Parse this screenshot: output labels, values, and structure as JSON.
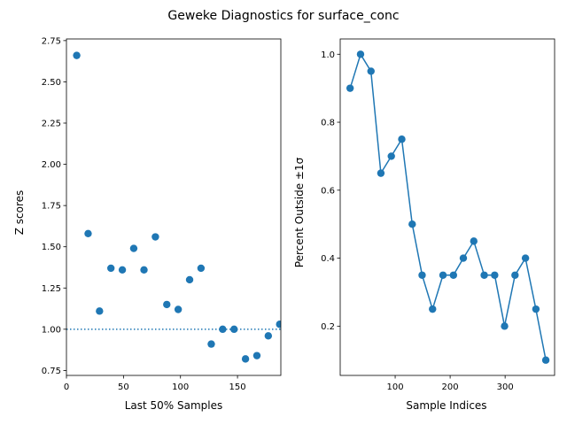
{
  "title": "Geweke Diagnostics for surface_conc",
  "chart_data": [
    {
      "type": "scatter",
      "xlabel": "Last 50% Samples",
      "ylabel": "Z scores",
      "xlim": [
        0,
        188
      ],
      "ylim": [
        0.72,
        2.76
      ],
      "xticks": [
        0,
        50,
        100,
        150
      ],
      "yticks": [
        0.75,
        1.0,
        1.25,
        1.5,
        1.75,
        2.0,
        2.25,
        2.5,
        2.75
      ],
      "ytick_labels": [
        "0.75",
        "1.00",
        "1.25",
        "1.50",
        "1.75",
        "2.00",
        "2.25",
        "2.50",
        "2.75"
      ],
      "reference_line": {
        "y": 1.0,
        "style": "dotted"
      },
      "color": "#1f77b4",
      "points": [
        {
          "x": 9,
          "y": 2.66
        },
        {
          "x": 19,
          "y": 1.58
        },
        {
          "x": 29,
          "y": 1.11
        },
        {
          "x": 39,
          "y": 1.37
        },
        {
          "x": 49,
          "y": 1.36
        },
        {
          "x": 59,
          "y": 1.49
        },
        {
          "x": 68,
          "y": 1.36
        },
        {
          "x": 78,
          "y": 1.56
        },
        {
          "x": 88,
          "y": 1.15
        },
        {
          "x": 98,
          "y": 1.12
        },
        {
          "x": 108,
          "y": 1.3
        },
        {
          "x": 118,
          "y": 1.37
        },
        {
          "x": 127,
          "y": 0.91
        },
        {
          "x": 137,
          "y": 1.0
        },
        {
          "x": 147,
          "y": 1.0
        },
        {
          "x": 157,
          "y": 0.82
        },
        {
          "x": 167,
          "y": 0.84
        },
        {
          "x": 177,
          "y": 0.96
        },
        {
          "x": 187,
          "y": 1.03
        }
      ]
    },
    {
      "type": "line",
      "xlabel": "Sample Indices",
      "ylabel": "Percent Outside ±1σ",
      "xlim": [
        0,
        390
      ],
      "ylim": [
        0.055,
        1.045
      ],
      "xticks": [
        100,
        200,
        300
      ],
      "yticks": [
        0.2,
        0.4,
        0.6,
        0.8,
        1.0
      ],
      "ytick_labels": [
        "0.2",
        "0.4",
        "0.6",
        "0.8",
        "1.0"
      ],
      "markers": true,
      "color": "#1f77b4",
      "points": [
        {
          "x": 18,
          "y": 0.9
        },
        {
          "x": 37,
          "y": 1.0
        },
        {
          "x": 56,
          "y": 0.95
        },
        {
          "x": 74,
          "y": 0.65
        },
        {
          "x": 93,
          "y": 0.7
        },
        {
          "x": 112,
          "y": 0.75
        },
        {
          "x": 131,
          "y": 0.5
        },
        {
          "x": 149,
          "y": 0.35
        },
        {
          "x": 168,
          "y": 0.25
        },
        {
          "x": 187,
          "y": 0.35
        },
        {
          "x": 206,
          "y": 0.35
        },
        {
          "x": 224,
          "y": 0.4
        },
        {
          "x": 243,
          "y": 0.45
        },
        {
          "x": 262,
          "y": 0.35
        },
        {
          "x": 281,
          "y": 0.35
        },
        {
          "x": 299,
          "y": 0.2
        },
        {
          "x": 318,
          "y": 0.35
        },
        {
          "x": 337,
          "y": 0.4
        },
        {
          "x": 356,
          "y": 0.25
        },
        {
          "x": 374,
          "y": 0.1
        }
      ]
    }
  ]
}
